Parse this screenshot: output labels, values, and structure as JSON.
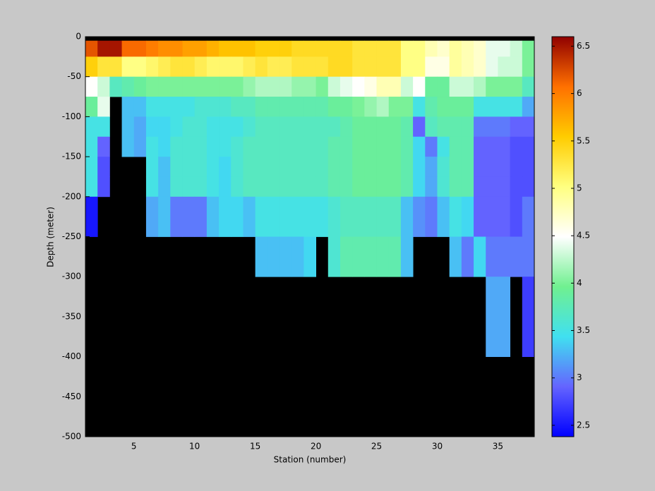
{
  "chart_data": {
    "type": "heatmap",
    "xlabel": "Station (number)",
    "ylabel": "Depth (meter)",
    "x": [
      1,
      2,
      3,
      4,
      5,
      6,
      7,
      8,
      9,
      10,
      11,
      12,
      13,
      14,
      15,
      16,
      17,
      18,
      19,
      20,
      21,
      22,
      23,
      24,
      25,
      26,
      27,
      28,
      29,
      30,
      31,
      32,
      33,
      34,
      35,
      36,
      37,
      38
    ],
    "y": [
      -5,
      -25,
      -50,
      -75,
      -100,
      -125,
      -150,
      -175,
      -200,
      -250,
      -300,
      -400
    ],
    "values": [
      [
        6.2,
        6.5,
        6.5,
        6.1,
        6.1,
        6.0,
        5.9,
        5.9,
        5.8,
        5.8,
        5.7,
        5.6,
        5.6,
        5.6,
        5.5,
        5.5,
        5.5,
        5.4,
        5.4,
        5.4,
        5.4,
        5.4,
        5.3,
        5.3,
        5.3,
        5.3,
        5.0,
        5.0,
        4.8,
        4.7,
        4.9,
        4.8,
        4.7,
        4.4,
        4.4,
        4.3,
        4.0
      ],
      [
        5.5,
        5.3,
        5.3,
        5.0,
        5.0,
        5.1,
        5.2,
        5.3,
        5.3,
        5.2,
        5.1,
        5.1,
        5.1,
        5.2,
        5.3,
        5.2,
        5.2,
        5.3,
        5.3,
        5.3,
        5.4,
        5.4,
        5.3,
        5.3,
        5.3,
        5.3,
        5.0,
        5.0,
        4.6,
        4.6,
        4.9,
        4.8,
        4.7,
        4.4,
        4.3,
        4.3,
        4.0
      ],
      [
        4.5,
        4.3,
        3.7,
        3.8,
        3.9,
        4.0,
        4.0,
        4.0,
        4.0,
        4.0,
        4.0,
        4.0,
        4.0,
        4.1,
        4.2,
        4.2,
        4.2,
        4.1,
        4.1,
        4.0,
        4.3,
        4.4,
        4.5,
        4.6,
        4.8,
        4.8,
        4.3,
        4.5,
        3.9,
        3.9,
        4.3,
        4.3,
        4.2,
        4.0,
        4.0,
        4.0,
        3.7
      ],
      [
        3.9,
        4.4,
        null,
        3.3,
        3.3,
        3.5,
        3.5,
        3.5,
        3.5,
        3.6,
        3.6,
        3.6,
        3.7,
        3.7,
        3.8,
        3.8,
        3.8,
        3.8,
        3.8,
        3.8,
        3.9,
        3.9,
        4.0,
        4.1,
        4.2,
        4.0,
        4.0,
        3.5,
        3.8,
        3.9,
        3.9,
        3.9,
        3.5,
        3.5,
        3.5,
        3.5,
        3.2
      ],
      [
        3.5,
        3.5,
        null,
        3.3,
        3.2,
        3.4,
        3.4,
        3.5,
        3.6,
        3.6,
        3.5,
        3.5,
        3.5,
        3.6,
        3.7,
        3.7,
        3.7,
        3.7,
        3.7,
        3.7,
        3.7,
        3.8,
        3.9,
        3.9,
        3.9,
        3.9,
        3.8,
        2.9,
        3.7,
        3.8,
        3.8,
        3.8,
        3.0,
        3.0,
        3.0,
        2.9,
        2.9
      ],
      [
        3.5,
        2.9,
        null,
        3.3,
        3.2,
        3.5,
        3.4,
        3.6,
        3.6,
        3.6,
        3.5,
        3.5,
        3.6,
        3.7,
        3.7,
        3.7,
        3.7,
        3.7,
        3.7,
        3.7,
        3.8,
        3.8,
        3.9,
        3.9,
        3.9,
        3.9,
        3.8,
        3.4,
        3.0,
        3.5,
        3.8,
        3.8,
        2.9,
        2.9,
        2.9,
        2.8,
        2.8
      ],
      [
        3.5,
        2.8,
        null,
        null,
        null,
        3.5,
        3.3,
        3.6,
        3.6,
        3.6,
        3.5,
        3.4,
        3.6,
        3.7,
        3.7,
        3.7,
        3.7,
        3.7,
        3.7,
        3.7,
        3.8,
        3.8,
        3.9,
        3.9,
        3.9,
        3.9,
        3.8,
        3.4,
        3.2,
        3.6,
        3.8,
        3.8,
        2.9,
        2.9,
        2.9,
        2.8,
        2.8
      ],
      [
        3.5,
        2.8,
        null,
        null,
        null,
        3.5,
        3.3,
        3.6,
        3.6,
        3.6,
        3.5,
        3.4,
        3.6,
        3.7,
        3.7,
        3.7,
        3.7,
        3.7,
        3.7,
        3.7,
        3.8,
        3.8,
        3.9,
        3.9,
        3.9,
        3.9,
        3.8,
        3.4,
        3.2,
        3.6,
        3.8,
        3.8,
        2.9,
        2.9,
        2.9,
        2.8,
        2.8
      ],
      [
        2.5,
        null,
        null,
        null,
        null,
        3.2,
        3.3,
        3.0,
        3.0,
        3.0,
        3.3,
        3.4,
        3.4,
        3.3,
        3.5,
        3.5,
        3.5,
        3.5,
        3.5,
        3.5,
        3.6,
        3.7,
        3.7,
        3.7,
        3.7,
        3.7,
        3.3,
        3.1,
        3.0,
        3.3,
        3.5,
        3.4,
        2.9,
        2.9,
        2.9,
        2.8,
        3.0
      ],
      [
        null,
        null,
        null,
        null,
        null,
        null,
        null,
        null,
        null,
        null,
        null,
        null,
        null,
        null,
        3.3,
        3.3,
        3.3,
        3.3,
        3.4,
        null,
        3.6,
        3.8,
        3.8,
        3.8,
        3.8,
        3.8,
        3.3,
        null,
        null,
        null,
        3.3,
        3.0,
        3.4,
        3.0,
        3.0,
        3.0,
        3.0
      ],
      [
        null,
        null,
        null,
        null,
        null,
        null,
        null,
        null,
        null,
        null,
        null,
        null,
        null,
        null,
        null,
        null,
        null,
        null,
        null,
        null,
        null,
        null,
        null,
        null,
        null,
        null,
        null,
        null,
        null,
        null,
        null,
        null,
        null,
        3.2,
        3.2,
        null,
        2.7
      ]
    ],
    "xlim": [
      1,
      38
    ],
    "xticks": [
      5,
      10,
      15,
      20,
      25,
      30,
      35
    ],
    "ylim": [
      -500,
      0
    ],
    "yticks": [
      -500,
      -450,
      -400,
      -350,
      -300,
      -250,
      -200,
      -150,
      -100,
      -50,
      0
    ],
    "clim": [
      2.38,
      6.6
    ],
    "cticks": [
      2.5,
      3,
      3.5,
      4,
      4.5,
      5,
      5.5,
      6,
      6.5
    ],
    "colormap": [
      "#0000ff",
      "#6464ff",
      "#40e0f0",
      "#70f090",
      "#ffffff",
      "#ffff80",
      "#ffcc00",
      "#ff7000",
      "#900000"
    ],
    "background": "#000000"
  }
}
